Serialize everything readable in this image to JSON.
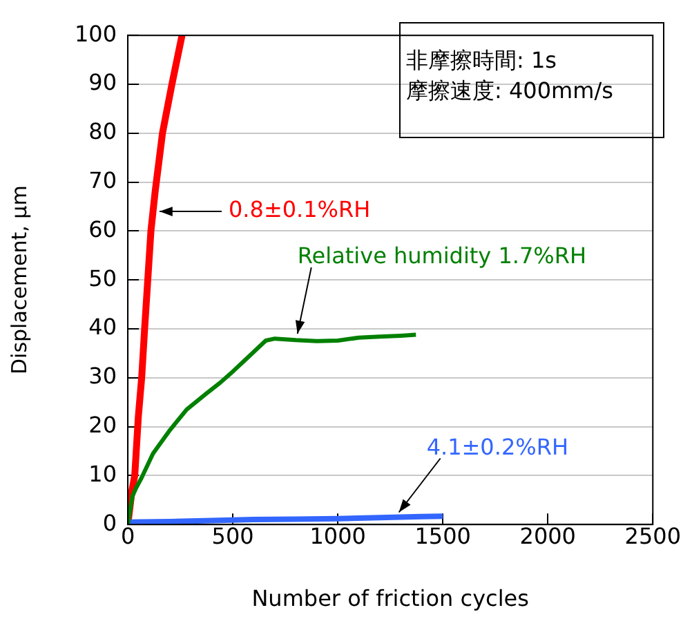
{
  "chart_data": {
    "type": "line",
    "xlabel": "Number of friction cycles",
    "ylabel": "Displacement, μm",
    "xlim": [
      0,
      2500
    ],
    "xticks": [
      0,
      500,
      1000,
      1500,
      2000,
      2500
    ],
    "ylim": [
      0,
      100
    ],
    "yticks": [
      0,
      10,
      20,
      30,
      40,
      50,
      60,
      70,
      80,
      90,
      100
    ],
    "grid": "y",
    "legend": false,
    "marker": "none",
    "line_style": "solid",
    "series": [
      {
        "color": "#ff0000",
        "x": [
          0,
          20,
          33,
          50,
          66,
          80,
          110,
          130,
          165,
          210,
          258
        ],
        "values": [
          0,
          7,
          10,
          22,
          30,
          40,
          60,
          68,
          80,
          90,
          100
        ]
      },
      {
        "color": "#008000",
        "x": [
          0,
          22,
          40,
          66,
          120,
          197,
          280,
          372,
          440,
          503,
          580,
          657,
          700,
          800,
          900,
          1000,
          1100,
          1200,
          1300,
          1372
        ],
        "values": [
          0,
          5.8,
          7.5,
          9.6,
          14.5,
          19.1,
          23.5,
          26.7,
          29,
          31.4,
          34.5,
          37.6,
          38,
          37.7,
          37.5,
          37.6,
          38.2,
          38.4,
          38.6,
          38.8
        ]
      },
      {
        "color": "#3366ff",
        "x": [
          0,
          200,
          400,
          600,
          800,
          1000,
          1200,
          1400,
          1500
        ],
        "values": [
          0.5,
          0.6,
          0.8,
          1,
          1.1,
          1.2,
          1.4,
          1.6,
          1.7
        ]
      }
    ],
    "annotations": [
      {
        "text": "0.8±0.1%RH",
        "x": 151,
        "y": 64
      },
      {
        "text": "Relative humidity 1.7%RH",
        "x": 808,
        "y": 39
      },
      {
        "text": "4.1±0.2%RH",
        "x": 1291,
        "y": 2.5
      },
      "非摩擦時間: 1s",
      "摩擦速度: 400mm/s"
    ]
  }
}
